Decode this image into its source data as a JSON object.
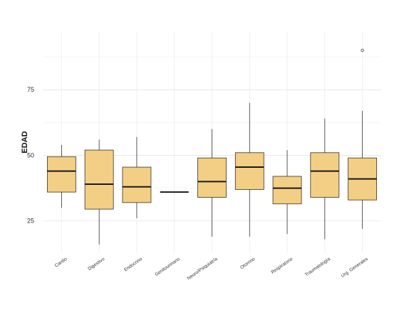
{
  "chart_data": {
    "type": "box",
    "title": "",
    "xlabel": "",
    "ylabel": "EDAD",
    "ylim": [
      13,
      97
    ],
    "yticks": [
      25,
      50,
      75
    ],
    "grid": true,
    "box_fill": "#f2cf85",
    "box_stroke": "#3a3020",
    "categories": [
      "Cardio",
      "Digestivo",
      "Endocrino",
      "Genitourinario",
      "Neuro/Psiquiatría",
      "Otorrino",
      "Respiratorio",
      "Traumatología",
      "Urg. Generales"
    ],
    "boxes": [
      {
        "min": 30,
        "q1": 36,
        "median": 44,
        "q3": 49.5,
        "max": 54,
        "outliers": []
      },
      {
        "min": 16,
        "q1": 29.5,
        "median": 39,
        "q3": 52,
        "max": 56,
        "outliers": []
      },
      {
        "min": 26,
        "q1": 32,
        "median": 38,
        "q3": 45.5,
        "max": 57,
        "outliers": []
      },
      {
        "min": 36,
        "q1": 36,
        "median": 36,
        "q3": 36,
        "max": 36,
        "outliers": []
      },
      {
        "min": 19,
        "q1": 34,
        "median": 40,
        "q3": 49,
        "max": 60,
        "outliers": []
      },
      {
        "min": 19,
        "q1": 37,
        "median": 45.5,
        "q3": 51,
        "max": 70,
        "outliers": []
      },
      {
        "min": 20,
        "q1": 31.5,
        "median": 37.5,
        "q3": 42,
        "max": 52,
        "outliers": []
      },
      {
        "min": 18,
        "q1": 34,
        "median": 44,
        "q3": 51,
        "max": 64,
        "outliers": []
      },
      {
        "min": 22,
        "q1": 33,
        "median": 41,
        "q3": 49,
        "max": 67,
        "outliers": [
          90
        ]
      }
    ]
  }
}
